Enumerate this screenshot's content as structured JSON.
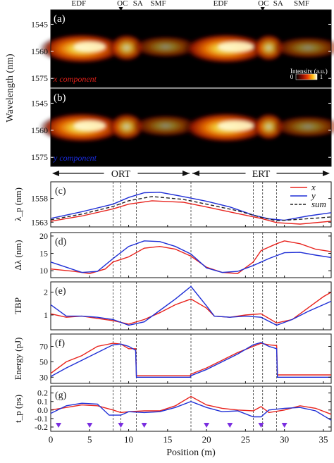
{
  "chart_data": {
    "type": "multi-panel",
    "x_axis": {
      "label": "Position (m)",
      "range": [
        0,
        36
      ],
      "ticks": [
        0,
        5,
        10,
        15,
        20,
        25,
        30,
        35
      ]
    },
    "section_labels": [
      {
        "text": "EDF",
        "x": 3.6
      },
      {
        "text": "OC",
        "x": 9.2
      },
      {
        "text": "SA",
        "x": 11.2
      },
      {
        "text": "SMF",
        "x": 13.8
      },
      {
        "text": "EDF",
        "x": 21.8
      },
      {
        "text": "OC",
        "x": 27.3
      },
      {
        "text": "SA",
        "x": 29.2
      },
      {
        "text": "SMF",
        "x": 32.2
      }
    ],
    "section_lines": [
      8,
      9,
      11,
      18,
      26,
      27.2,
      29
    ],
    "oc_markers": [
      9,
      27.2
    ],
    "intensity_maps": {
      "ylabel": "Wavelength (nm)",
      "yticks": [
        1545,
        1560,
        1575
      ],
      "ylim": [
        1537,
        1580
      ],
      "colorbar": {
        "label": "Intensity (a.u.)",
        "min_label": "0",
        "max_label": "1"
      },
      "panels": [
        {
          "tag": "(a)",
          "label": "x component",
          "label_color": "#e0201a"
        },
        {
          "tag": "(b)",
          "label": "y component",
          "label_color": "#1a2be0"
        }
      ]
    },
    "round_trip": {
      "left": "ORT",
      "right": "ERT",
      "boundary": 18
    },
    "panel_c": {
      "tag": "(c)",
      "ylabel": "λ_p (nm)",
      "yticks": [
        1558,
        1563
      ],
      "ylim": [
        1554.5,
        1564
      ],
      "inverted": true,
      "legend": [
        "x",
        "y",
        "sum"
      ],
      "legend_position": "top-right",
      "series": [
        {
          "name": "x",
          "color": "#e8231d",
          "points": [
            [
              0,
              1562.8
            ],
            [
              4,
              1561.7
            ],
            [
              8,
              1560.2
            ],
            [
              10,
              1559.2
            ],
            [
              13,
              1558.5
            ],
            [
              17,
              1558.8
            ],
            [
              20,
              1559.8
            ],
            [
              24,
              1561.2
            ],
            [
              27,
              1562.2
            ],
            [
              29,
              1563.1
            ],
            [
              32,
              1563.4
            ],
            [
              36,
              1562.8
            ]
          ]
        },
        {
          "name": "y",
          "color": "#1f2fd6",
          "points": [
            [
              0,
              1562.2
            ],
            [
              4,
              1560.8
            ],
            [
              8,
              1559.2
            ],
            [
              10,
              1557.8
            ],
            [
              12,
              1556.8
            ],
            [
              14,
              1556.7
            ],
            [
              17,
              1557.6
            ],
            [
              20,
              1558.6
            ],
            [
              23,
              1559.8
            ],
            [
              26,
              1561.5
            ],
            [
              28,
              1562.3
            ],
            [
              30,
              1562.6
            ],
            [
              33,
              1561.7
            ],
            [
              36,
              1561.0
            ]
          ]
        },
        {
          "name": "sum",
          "color": "#222222",
          "dashed": true,
          "points": [
            [
              0,
              1562.5
            ],
            [
              4,
              1561.3
            ],
            [
              8,
              1559.7
            ],
            [
              10,
              1558.5
            ],
            [
              13,
              1557.6
            ],
            [
              17,
              1558.2
            ],
            [
              20,
              1559.2
            ],
            [
              24,
              1560.6
            ],
            [
              27,
              1562.0
            ],
            [
              29,
              1562.7
            ],
            [
              32,
              1562.4
            ],
            [
              36,
              1561.9
            ]
          ]
        }
      ]
    },
    "panel_d": {
      "tag": "(d)",
      "ylabel": "Δλ (nm)",
      "yticks": [
        10,
        15,
        20
      ],
      "ylim": [
        8,
        21
      ],
      "series": [
        {
          "name": "x",
          "color": "#e8231d",
          "points": [
            [
              0,
              10.5
            ],
            [
              3,
              9.8
            ],
            [
              5,
              9.2
            ],
            [
              7,
              10.5
            ],
            [
              8,
              12.5
            ],
            [
              10,
              14
            ],
            [
              12,
              16.5
            ],
            [
              14,
              17
            ],
            [
              16,
              16.2
            ],
            [
              18,
              14.2
            ],
            [
              20,
              11
            ],
            [
              22,
              9.5
            ],
            [
              24,
              9.2
            ],
            [
              26,
              12.5
            ],
            [
              27,
              15.8
            ],
            [
              29,
              17.8
            ],
            [
              30,
              18.6
            ],
            [
              32,
              17.8
            ],
            [
              34,
              16.2
            ],
            [
              36,
              15.5
            ]
          ]
        },
        {
          "name": "y",
          "color": "#1f2fd6",
          "points": [
            [
              0,
              12.5
            ],
            [
              2,
              11
            ],
            [
              4,
              9.5
            ],
            [
              6,
              9.8
            ],
            [
              8,
              13.5
            ],
            [
              10,
              17
            ],
            [
              12,
              18.6
            ],
            [
              14,
              18.4
            ],
            [
              16,
              17
            ],
            [
              18,
              14.8
            ],
            [
              20,
              10.8
            ],
            [
              22,
              9.5
            ],
            [
              24,
              9.8
            ],
            [
              26,
              11.5
            ],
            [
              28,
              13.5
            ],
            [
              30,
              15.2
            ],
            [
              32,
              15.3
            ],
            [
              34,
              14.5
            ],
            [
              36,
              13.8
            ]
          ]
        }
      ]
    },
    "panel_e": {
      "tag": "(e)",
      "ylabel": "TBP",
      "yticks": [
        1,
        2
      ],
      "ylim": [
        0.35,
        2.45
      ],
      "series": [
        {
          "name": "x",
          "color": "#e8231d",
          "points": [
            [
              0,
              1.05
            ],
            [
              2,
              0.9
            ],
            [
              4,
              0.95
            ],
            [
              6,
              0.85
            ],
            [
              8,
              0.75
            ],
            [
              10,
              0.6
            ],
            [
              12,
              0.8
            ],
            [
              14,
              1.1
            ],
            [
              16,
              1.45
            ],
            [
              18,
              1.7
            ],
            [
              20,
              1.3
            ],
            [
              21,
              0.95
            ],
            [
              23,
              0.9
            ],
            [
              25,
              1.0
            ],
            [
              27,
              1.05
            ],
            [
              29,
              0.65
            ],
            [
              31,
              0.8
            ],
            [
              33,
              1.3
            ],
            [
              35,
              1.8
            ],
            [
              36,
              2.0
            ]
          ]
        },
        {
          "name": "y",
          "color": "#1f2fd6",
          "points": [
            [
              0,
              1.45
            ],
            [
              2,
              0.95
            ],
            [
              4,
              0.95
            ],
            [
              6,
              0.9
            ],
            [
              8,
              0.8
            ],
            [
              10,
              0.55
            ],
            [
              12,
              0.7
            ],
            [
              14,
              1.2
            ],
            [
              16,
              1.7
            ],
            [
              18,
              2.25
            ],
            [
              20,
              1.4
            ],
            [
              21,
              0.95
            ],
            [
              23,
              0.9
            ],
            [
              25,
              0.95
            ],
            [
              27,
              0.9
            ],
            [
              29,
              0.55
            ],
            [
              31,
              0.8
            ],
            [
              33,
              1.15
            ],
            [
              35,
              1.45
            ],
            [
              36,
              1.6
            ]
          ]
        }
      ]
    },
    "panel_f": {
      "tag": "(f)",
      "ylabel": "Energy (pJ)",
      "yticks": [
        30,
        50,
        70
      ],
      "ylim": [
        22,
        86
      ],
      "series": [
        {
          "name": "x",
          "color": "#e8231d",
          "points": [
            [
              0,
              35
            ],
            [
              2,
              50
            ],
            [
              4,
              58
            ],
            [
              6,
              70
            ],
            [
              8,
              74
            ],
            [
              9,
              73
            ],
            [
              10,
              67
            ],
            [
              10.9,
              67
            ],
            [
              11,
              32
            ],
            [
              17.9,
              32
            ],
            [
              18,
              34
            ],
            [
              20,
              42
            ],
            [
              22,
              52
            ],
            [
              24,
              62
            ],
            [
              26,
              70
            ],
            [
              27,
              74
            ],
            [
              28,
              72
            ],
            [
              29,
              71
            ],
            [
              29.1,
              33
            ],
            [
              36,
              33
            ]
          ]
        },
        {
          "name": "y",
          "color": "#1f2fd6",
          "points": [
            [
              0,
              31
            ],
            [
              2,
              42
            ],
            [
              4,
              52
            ],
            [
              6,
              62
            ],
            [
              8,
              72
            ],
            [
              9,
              73
            ],
            [
              10,
              70
            ],
            [
              10.9,
              65
            ],
            [
              11,
              30
            ],
            [
              17.9,
              30
            ],
            [
              18,
              32
            ],
            [
              20,
              40
            ],
            [
              22,
              50
            ],
            [
              24,
              60
            ],
            [
              26,
              72
            ],
            [
              27,
              75
            ],
            [
              28,
              70
            ],
            [
              29,
              67
            ],
            [
              29.1,
              30
            ],
            [
              36,
              30
            ]
          ]
        }
      ]
    },
    "panel_g": {
      "tag": "(g)",
      "ylabel": "t_p (ps)",
      "yticks": [
        -0.2,
        -0.1,
        0.0,
        0.1,
        0.2
      ],
      "ylim": [
        -0.25,
        0.28
      ],
      "triangle_markers": [
        1,
        5,
        9,
        12,
        20,
        23,
        27,
        30
      ],
      "series": [
        {
          "name": "x",
          "color": "#e8231d",
          "points": [
            [
              0,
              0.0
            ],
            [
              2,
              0.03
            ],
            [
              4,
              0.06
            ],
            [
              6,
              0.05
            ],
            [
              8,
              0.0
            ],
            [
              9,
              -0.03
            ],
            [
              10,
              -0.02
            ],
            [
              12,
              -0.01
            ],
            [
              14,
              -0.01
            ],
            [
              16,
              0.05
            ],
            [
              18,
              0.16
            ],
            [
              20,
              0.06
            ],
            [
              22,
              0.02
            ],
            [
              24,
              0.0
            ],
            [
              26,
              -0.01
            ],
            [
              27,
              0.04
            ],
            [
              28,
              -0.03
            ],
            [
              30,
              0.0
            ],
            [
              32,
              0.05
            ],
            [
              34,
              0.02
            ],
            [
              36,
              -0.05
            ]
          ]
        },
        {
          "name": "y",
          "color": "#1f2fd6",
          "points": [
            [
              0,
              -0.04
            ],
            [
              2,
              0.05
            ],
            [
              4,
              0.08
            ],
            [
              6,
              0.07
            ],
            [
              7.5,
              -0.06
            ],
            [
              9,
              -0.06
            ],
            [
              10,
              -0.02
            ],
            [
              12,
              -0.03
            ],
            [
              14,
              -0.02
            ],
            [
              16,
              0.03
            ],
            [
              18,
              0.1
            ],
            [
              20,
              0.03
            ],
            [
              22,
              -0.02
            ],
            [
              24,
              -0.01
            ],
            [
              26,
              -0.08
            ],
            [
              27,
              -0.08
            ],
            [
              28,
              0.0
            ],
            [
              30,
              0.02
            ],
            [
              32,
              0.03
            ],
            [
              34,
              -0.01
            ],
            [
              36,
              -0.12
            ]
          ]
        }
      ]
    }
  }
}
